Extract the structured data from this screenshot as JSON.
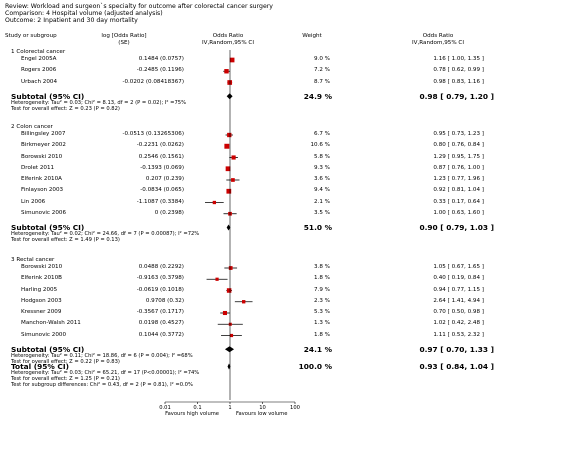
{
  "header": {
    "review": "Review:  Workload and surgeon`s specialty for outcome after colorectal cancer surgery",
    "comparison": "Comparison:  4 Hospital volume (adjusted analysis)",
    "outcome": "Outcome:  2 Inpatient and 30 day mortality"
  },
  "columns": {
    "study": "Study or subgroup",
    "log_or": "log [Odds Ratio]",
    "se": "(SE)",
    "or_title": "Odds Ratio",
    "or_sub": "IV,Random,95% CI",
    "weight": "Weight",
    "or2_title": "Odds Ratio",
    "or2_sub": "IV,Random,95% CI"
  },
  "chart_data": {
    "type": "forest",
    "x_scale": "log",
    "xlim": [
      0.01,
      100
    ],
    "x_ticks": [
      "0.01",
      "0.1",
      "1",
      "10",
      "100"
    ],
    "x_tick_values": [
      0.01,
      0.1,
      1,
      10,
      100
    ],
    "favours_left": "Favours high volume",
    "favours_right": "Favours low volume",
    "groups": [
      {
        "title": "1 Colorectal cancer",
        "studies": [
          {
            "name": "Engel 2005A",
            "log_se": "0.1484 (0.0757)",
            "weight": "9.0 %",
            "ci_text": "1.16 [ 1.00, 1.35 ]",
            "or": 1.16,
            "lo": 1.0,
            "hi": 1.35,
            "w": 9.0
          },
          {
            "name": "Rogers 2006",
            "log_se": "-0.2485 (0.1196)",
            "weight": "7.2 %",
            "ci_text": "0.78 [ 0.62, 0.99 ]",
            "or": 0.78,
            "lo": 0.62,
            "hi": 0.99,
            "w": 7.2
          },
          {
            "name": "Urbach 2004",
            "log_se": "-0.0202 (0.08418367)",
            "weight": "8.7 %",
            "ci_text": "0.98 [ 0.83, 1.16 ]",
            "or": 0.98,
            "lo": 0.83,
            "hi": 1.16,
            "w": 8.7
          }
        ],
        "subtotal": {
          "label": "Subtotal (95% CI)",
          "weight": "24.9 %",
          "ci_text": "0.98 [ 0.79, 1.20 ]",
          "or": 0.98,
          "lo": 0.79,
          "hi": 1.2
        },
        "heterogeneity": "Heterogeneity: Tau² = 0.03; Chi² = 8.13, df = 2 (P = 0.02); I² =75%",
        "overall_effect": "Test for overall effect: Z = 0.23 (P = 0.82)"
      },
      {
        "title": "2 Colon cancer",
        "studies": [
          {
            "name": "Billingsley 2007",
            "log_se": "-0.0513 (0.13265306)",
            "weight": "6.7 %",
            "ci_text": "0.95 [ 0.73, 1.23 ]",
            "or": 0.95,
            "lo": 0.73,
            "hi": 1.23,
            "w": 6.7
          },
          {
            "name": "Birkmeyer 2002",
            "log_se": "-0.2231 (0.0262)",
            "weight": "10.6 %",
            "ci_text": "0.80 [ 0.76, 0.84 ]",
            "or": 0.8,
            "lo": 0.76,
            "hi": 0.84,
            "w": 10.6
          },
          {
            "name": "Borowski 2010",
            "log_se": "0.2546 (0.1561)",
            "weight": "5.8 %",
            "ci_text": "1.29 [ 0.95, 1.75 ]",
            "or": 1.29,
            "lo": 0.95,
            "hi": 1.75,
            "w": 5.8
          },
          {
            "name": "Drolet 2011",
            "log_se": "-0.1393 (0.069)",
            "weight": "9.3 %",
            "ci_text": "0.87 [ 0.76, 1.00 ]",
            "or": 0.87,
            "lo": 0.76,
            "hi": 1.0,
            "w": 9.3
          },
          {
            "name": "Elferink 2010A",
            "log_se": "0.207 (0.239)",
            "weight": "3.6 %",
            "ci_text": "1.23 [ 0.77, 1.96 ]",
            "or": 1.23,
            "lo": 0.77,
            "hi": 1.96,
            "w": 3.6
          },
          {
            "name": "Finlayson 2003",
            "log_se": "-0.0834 (0.065)",
            "weight": "9.4 %",
            "ci_text": "0.92 [ 0.81, 1.04 ]",
            "or": 0.92,
            "lo": 0.81,
            "hi": 1.04,
            "w": 9.4
          },
          {
            "name": "Lin 2006",
            "log_se": "-1.1087 (0.3384)",
            "weight": "2.1 %",
            "ci_text": "0.33 [ 0.17, 0.64 ]",
            "or": 0.33,
            "lo": 0.17,
            "hi": 0.64,
            "w": 2.1
          },
          {
            "name": "Simunovic 2006",
            "log_se": "0 (0.2398)",
            "weight": "3.5 %",
            "ci_text": "1.00 [ 0.63, 1.60 ]",
            "or": 1.0,
            "lo": 0.63,
            "hi": 1.6,
            "w": 3.5
          }
        ],
        "subtotal": {
          "label": "Subtotal (95% CI)",
          "weight": "51.0 %",
          "ci_text": "0.90 [ 0.79, 1.03 ]",
          "or": 0.9,
          "lo": 0.79,
          "hi": 1.03
        },
        "heterogeneity": "Heterogeneity: Tau² = 0.02; Chi² = 24.66, df = 7 (P = 0.00087); I² =72%",
        "overall_effect": "Test for overall effect: Z = 1.49 (P = 0.13)"
      },
      {
        "title": "3 Rectal cancer",
        "studies": [
          {
            "name": "Borowski 2010",
            "log_se": "0.0488 (0.2292)",
            "weight": "3.8 %",
            "ci_text": "1.05 [ 0.67, 1.65 ]",
            "or": 1.05,
            "lo": 0.67,
            "hi": 1.65,
            "w": 3.8
          },
          {
            "name": "Elferink 2010B",
            "log_se": "-0.9163 (0.3798)",
            "weight": "1.8 %",
            "ci_text": "0.40 [ 0.19, 0.84 ]",
            "or": 0.4,
            "lo": 0.19,
            "hi": 0.84,
            "w": 1.8
          },
          {
            "name": "Harling 2005",
            "log_se": "-0.0619 (0.1018)",
            "weight": "7.9 %",
            "ci_text": "0.94 [ 0.77, 1.15 ]",
            "or": 0.94,
            "lo": 0.77,
            "hi": 1.15,
            "w": 7.9
          },
          {
            "name": "Hodgson 2003",
            "log_se": "0.9708 (0.32)",
            "weight": "2.3 %",
            "ci_text": "2.64 [ 1.41, 4.94 ]",
            "or": 2.64,
            "lo": 1.41,
            "hi": 4.94,
            "w": 2.3
          },
          {
            "name": "Kressner 2009",
            "log_se": "-0.3567 (0.1717)",
            "weight": "5.3 %",
            "ci_text": "0.70 [ 0.50, 0.98 ]",
            "or": 0.7,
            "lo": 0.5,
            "hi": 0.98,
            "w": 5.3
          },
          {
            "name": "Manchon-Walsh 2011",
            "log_se": "0.0198 (0.4527)",
            "weight": "1.3 %",
            "ci_text": "1.02 [ 0.42, 2.48 ]",
            "or": 1.02,
            "lo": 0.42,
            "hi": 2.48,
            "w": 1.3
          },
          {
            "name": "Simunovic 2000",
            "log_se": "0.1044 (0.3772)",
            "weight": "1.8 %",
            "ci_text": "1.11 [ 0.53, 2.32 ]",
            "or": 1.11,
            "lo": 0.53,
            "hi": 2.32,
            "w": 1.8
          }
        ],
        "subtotal": {
          "label": "Subtotal (95% CI)",
          "weight": "24.1 %",
          "ci_text": "0.97 [ 0.70, 1.33 ]",
          "or": 0.97,
          "lo": 0.7,
          "hi": 1.33
        },
        "heterogeneity": "Heterogeneity: Tau² = 0.11; Chi² = 18.86, df = 6 (P = 0.004); I² =68%",
        "overall_effect": "Test for overall effect: Z = 0.22 (P = 0.83)"
      }
    ],
    "total": {
      "label": "Total (95% CI)",
      "weight": "100.0 %",
      "ci_text": "0.93 [ 0.84, 1.04 ]",
      "or": 0.93,
      "lo": 0.84,
      "hi": 1.04,
      "heterogeneity": "Heterogeneity: Tau² = 0.03; Chi² = 65.21, df = 17 (P<0.00001); I² =74%",
      "overall_effect": "Test for overall effect: Z = 1.25 (P = 0.21)",
      "subgroup_diff": "Test for subgroup differences: Chi² = 0.43, df = 2 (P = 0.81), I² =0.0%"
    },
    "colors": {
      "square": "#cc0000",
      "diamond": "#000000",
      "line": "#000000"
    }
  }
}
